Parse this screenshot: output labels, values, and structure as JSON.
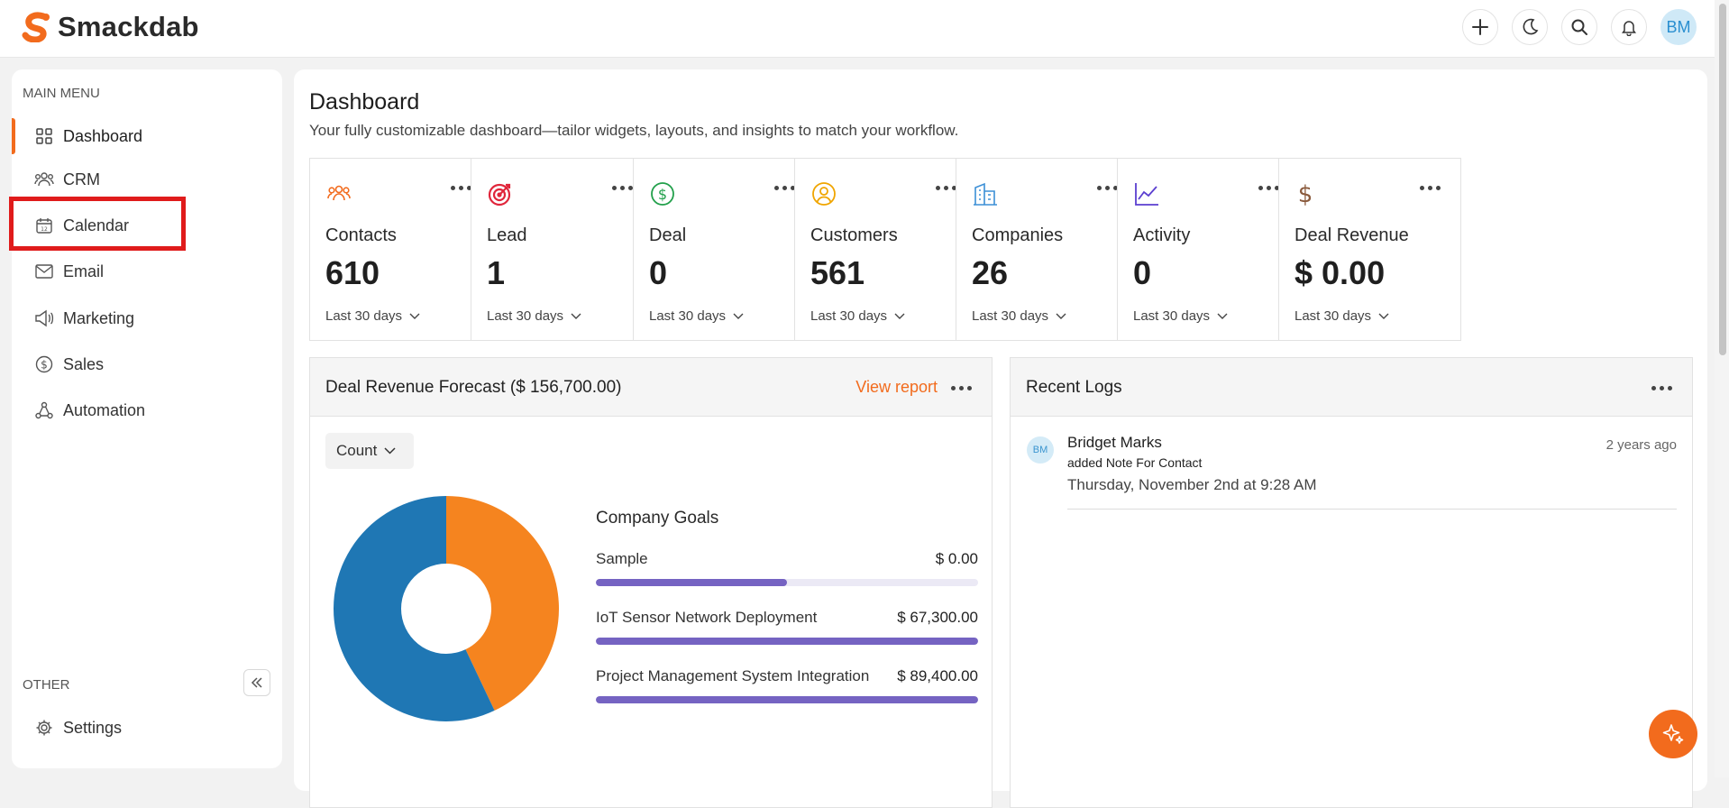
{
  "app": {
    "name": "Smackdab"
  },
  "topbar": {
    "avatar_initials": "BM",
    "icons": [
      "plus-icon",
      "moon-icon",
      "search-icon",
      "bell-icon"
    ]
  },
  "sidebar": {
    "main_menu_label": "MAIN MENU",
    "items": [
      {
        "label": "Dashboard",
        "icon": "grid-icon",
        "active": true
      },
      {
        "label": "CRM",
        "icon": "users-icon"
      },
      {
        "label": "Calendar",
        "icon": "calendar-icon"
      },
      {
        "label": "Email",
        "icon": "mail-icon"
      },
      {
        "label": "Marketing",
        "icon": "megaphone-icon"
      },
      {
        "label": "Sales",
        "icon": "dollar-circle-icon"
      },
      {
        "label": "Automation",
        "icon": "workflow-icon"
      }
    ],
    "other_label": "OTHER",
    "settings_label": "Settings"
  },
  "page": {
    "title": "Dashboard",
    "subtitle": "Your fully customizable dashboard—tailor widgets, layouts, and insights to match your workflow."
  },
  "stats": [
    {
      "label": "Contacts",
      "value": "610",
      "period": "Last 30 days",
      "icon": "contacts-icon",
      "color": "#f26b1d"
    },
    {
      "label": "Lead",
      "value": "1",
      "period": "Last 30 days",
      "icon": "target-icon",
      "color": "#e0263b"
    },
    {
      "label": "Deal",
      "value": "0",
      "period": "Last 30 days",
      "icon": "dollar-circle-icon",
      "color": "#22a04b"
    },
    {
      "label": "Customers",
      "value": "561",
      "period": "Last 30 days",
      "icon": "user-circle-icon",
      "color": "#f0a500"
    },
    {
      "label": "Companies",
      "value": "26",
      "period": "Last 30 days",
      "icon": "building-icon",
      "color": "#3b8fd6"
    },
    {
      "label": "Activity",
      "value": "0",
      "period": "Last 30 days",
      "icon": "line-chart-icon",
      "color": "#5b3fd0"
    },
    {
      "label": "Deal Revenue",
      "value": "$ 0.00",
      "period": "Last 30 days",
      "icon": "dollar-icon",
      "color": "#8a5a3c"
    }
  ],
  "forecast": {
    "title": "Deal Revenue Forecast ($ 156,700.00)",
    "view_report": "View report",
    "select_value": "Count",
    "goals_title": "Company Goals",
    "goals": [
      {
        "name": "Sample",
        "value": "$ 0.00",
        "progress": 0.5
      },
      {
        "name": "IoT Sensor Network Deployment",
        "value": "$ 67,300.00",
        "progress": 1.0
      },
      {
        "name": "Project Management System Integration",
        "value": "$ 89,400.00",
        "progress": 1.0
      }
    ]
  },
  "chart_data": {
    "type": "pie",
    "categories": [
      "IoT Sensor Network Deployment",
      "Project Management System Integration"
    ],
    "values": [
      67300,
      89400
    ],
    "colors": [
      "#f5841f",
      "#1f77b4"
    ]
  },
  "logs": {
    "title": "Recent Logs",
    "items": [
      {
        "initials": "BM",
        "name": "Bridget Marks",
        "action": "added Note For Contact",
        "time": "Thursday, November 2nd at 9:28 AM",
        "ago": "2 years ago"
      }
    ]
  }
}
